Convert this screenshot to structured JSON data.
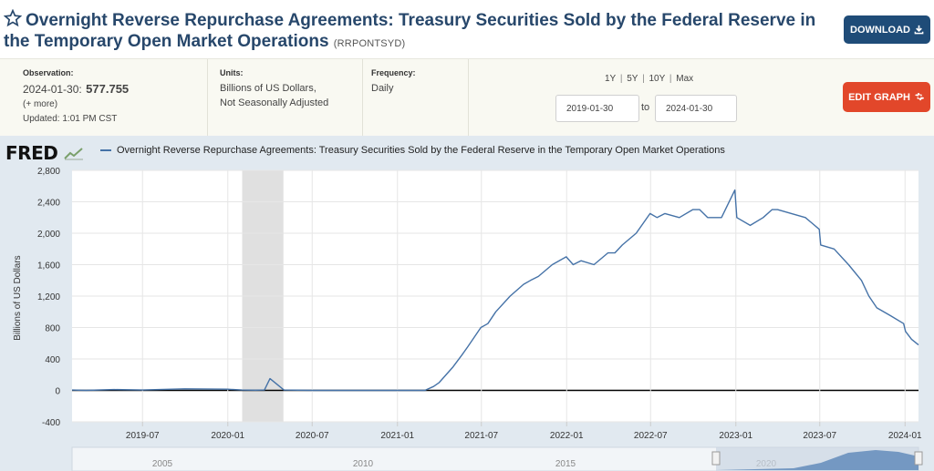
{
  "header": {
    "title": "Overnight Reverse Repurchase Agreements: Treasury Securities Sold by the Federal Reserve in the Temporary Open Market Operations",
    "series_id": "(RRPONTSYD)",
    "download_label": "DOWNLOAD"
  },
  "meta": {
    "observation_label": "Observation:",
    "observation_date": "2024-01-30:",
    "observation_value": "577.755",
    "more": "(+ more)",
    "updated": "Updated: 1:01 PM CST",
    "units_label": "Units:",
    "units_line1": "Billions of US Dollars,",
    "units_line2": "Not Seasonally Adjusted",
    "frequency_label": "Frequency:",
    "frequency": "Daily",
    "range_1y": "1Y",
    "range_5y": "5Y",
    "range_10y": "10Y",
    "range_max": "Max",
    "range_sep": "|",
    "date_from": "2019-01-30",
    "to_label": "to",
    "date_to": "2024-01-30",
    "edit_label": "EDIT GRAPH"
  },
  "colors": {
    "title": "#27476b",
    "download": "#1f4c78",
    "edit": "#e2472a",
    "series": "#4572a7",
    "recession": "#e0e0e0",
    "chart_bg": "#e1e9f0"
  },
  "icons": {
    "favorite": "star-icon",
    "download": "download-icon",
    "edit": "gear-icon",
    "logo_graph": "fred-graph-icon"
  },
  "chart_data": {
    "type": "line",
    "logo": "FRED",
    "legend": "Overnight Reverse Repurchase Agreements: Treasury Securities Sold by the Federal Reserve in the Temporary Open Market Operations",
    "ylabel": "Billions of US Dollars",
    "xlabel": "",
    "ylim": [
      -400,
      2800
    ],
    "yticks": [
      -400,
      0,
      400,
      800,
      1200,
      1600,
      2000,
      2400,
      2800
    ],
    "ytick_labels": [
      "-400",
      "0",
      "400",
      "800",
      "1,200",
      "1,600",
      "2,000",
      "2,400",
      "2,800"
    ],
    "xlim": [
      "2019-01-30",
      "2024-01-30"
    ],
    "xticks": [
      "2019-07",
      "2020-01",
      "2020-07",
      "2021-01",
      "2021-07",
      "2022-01",
      "2022-07",
      "2023-01",
      "2023-07",
      "2024-01"
    ],
    "recession": [
      "2020-02-01",
      "2020-04-30"
    ],
    "grid": true,
    "series": [
      {
        "x": [
          "2019-01-30",
          "2019-03-01",
          "2019-05-01",
          "2019-07-01",
          "2019-09-30",
          "2019-12-31",
          "2020-01-31",
          "2020-03-01",
          "2020-03-20",
          "2020-04-01",
          "2020-05-01",
          "2020-07-01",
          "2020-10-01",
          "2021-01-01",
          "2021-03-01",
          "2021-03-20",
          "2021-04-01",
          "2021-05-01",
          "2021-05-20",
          "2021-06-01",
          "2021-06-30",
          "2021-07-15",
          "2021-08-01",
          "2021-09-01",
          "2021-09-30",
          "2021-10-15",
          "2021-11-01",
          "2021-12-01",
          "2021-12-31",
          "2022-01-15",
          "2022-02-01",
          "2022-03-01",
          "2022-03-31",
          "2022-04-15",
          "2022-05-01",
          "2022-05-31",
          "2022-06-30",
          "2022-07-15",
          "2022-08-01",
          "2022-09-01",
          "2022-09-30",
          "2022-10-15",
          "2022-11-01",
          "2022-12-01",
          "2022-12-30",
          "2023-01-03",
          "2023-02-01",
          "2023-03-01",
          "2023-03-20",
          "2023-04-01",
          "2023-05-01",
          "2023-05-31",
          "2023-06-30",
          "2023-07-03",
          "2023-08-01",
          "2023-09-01",
          "2023-09-29",
          "2023-10-15",
          "2023-11-01",
          "2023-12-01",
          "2023-12-29",
          "2024-01-02",
          "2024-01-15",
          "2024-01-30"
        ],
        "y": [
          5,
          0,
          10,
          5,
          20,
          15,
          5,
          2,
          5,
          150,
          5,
          0,
          0,
          0,
          0,
          50,
          100,
          300,
          450,
          550,
          800,
          850,
          1000,
          1200,
          1350,
          1400,
          1450,
          1600,
          1700,
          1600,
          1650,
          1600,
          1750,
          1750,
          1850,
          2000,
          2250,
          2200,
          2250,
          2200,
          2300,
          2300,
          2200,
          2200,
          2550,
          2200,
          2100,
          2200,
          2300,
          2300,
          2250,
          2200,
          2050,
          1850,
          1800,
          1600,
          1400,
          1200,
          1050,
          950,
          850,
          750,
          650,
          578
        ]
      }
    ],
    "navigator": {
      "labels": [
        "2005",
        "2010",
        "2015",
        "2020"
      ],
      "range": [
        "2019-01-30",
        "2024-01-30"
      ]
    }
  }
}
